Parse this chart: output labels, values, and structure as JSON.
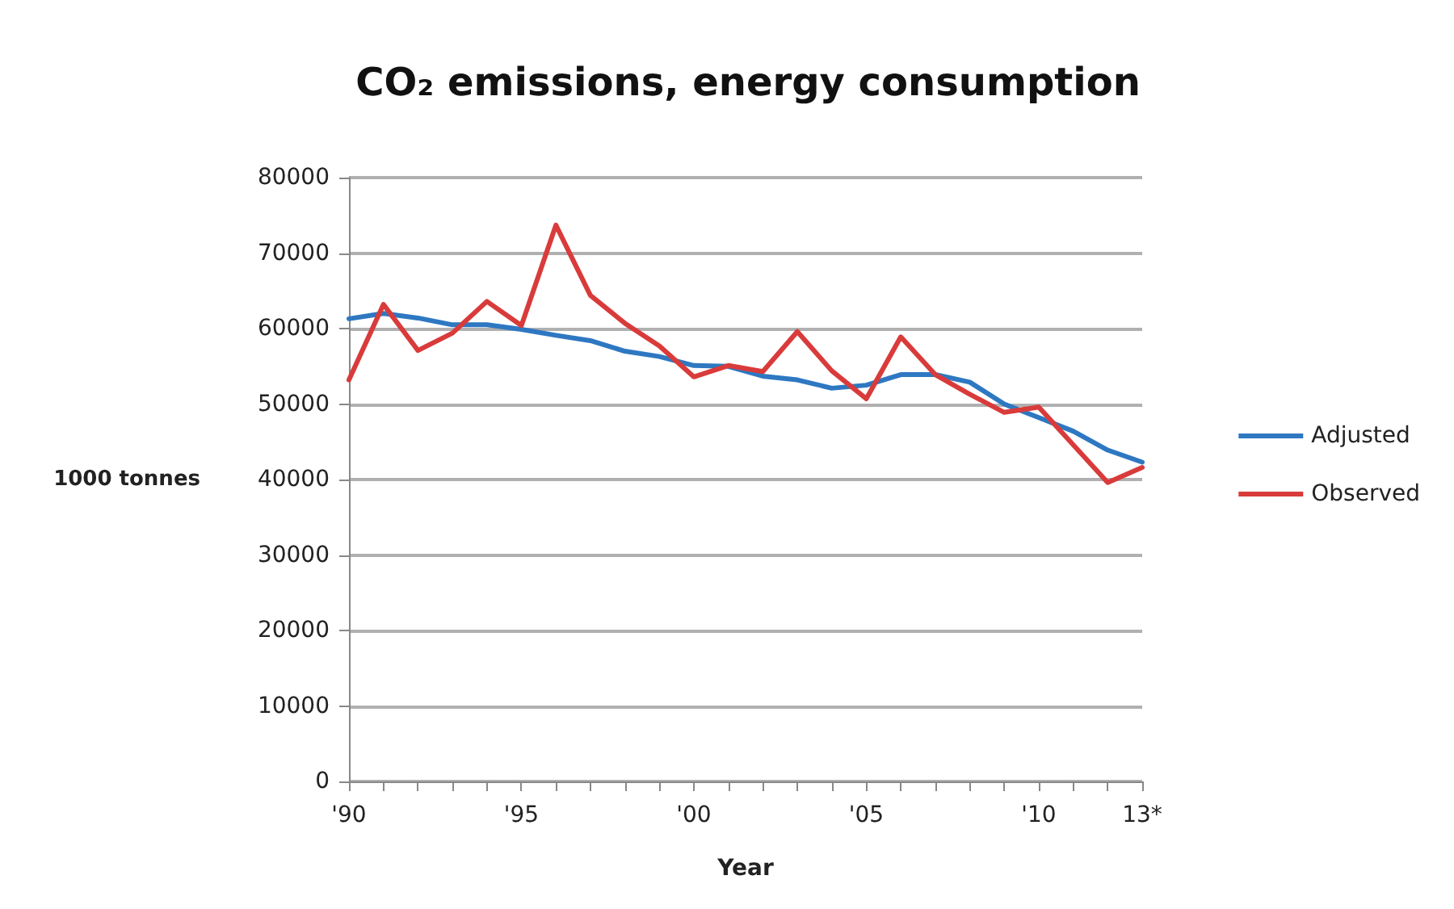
{
  "chart_data": {
    "type": "line",
    "title": "CO₂ emissions, energy consumption",
    "xlabel": "Year",
    "ylabel": "1000 tonnes",
    "categories": [
      "'90",
      null,
      null,
      null,
      null,
      "'95",
      null,
      null,
      null,
      null,
      "'00",
      null,
      null,
      null,
      null,
      "'05",
      null,
      null,
      null,
      null,
      "'10",
      null,
      null,
      "13*"
    ],
    "series": [
      {
        "name": "Adjusted",
        "color": "#2e78c2",
        "values": [
          61300,
          62000,
          61400,
          60500,
          60500,
          59900,
          59100,
          58400,
          57000,
          56300,
          55100,
          55000,
          53700,
          53200,
          52100,
          52500,
          53900,
          53900,
          52900,
          50000,
          48200,
          46400,
          43900,
          42300
        ]
      },
      {
        "name": "Observed",
        "color": "#d93b3b",
        "values": [
          53200,
          63200,
          57100,
          59400,
          63600,
          60400,
          73700,
          64400,
          60700,
          57700,
          53600,
          55100,
          54300,
          59600,
          54400,
          50700,
          58900,
          53900,
          51300,
          48900,
          49600,
          44600,
          39600,
          41600
        ]
      }
    ],
    "ylim": [
      0,
      80000
    ],
    "yticks": [
      0,
      10000,
      20000,
      30000,
      40000,
      50000,
      60000,
      70000,
      80000
    ],
    "grid": "y",
    "legend": "right",
    "marker": "none",
    "line_style": "solid"
  }
}
